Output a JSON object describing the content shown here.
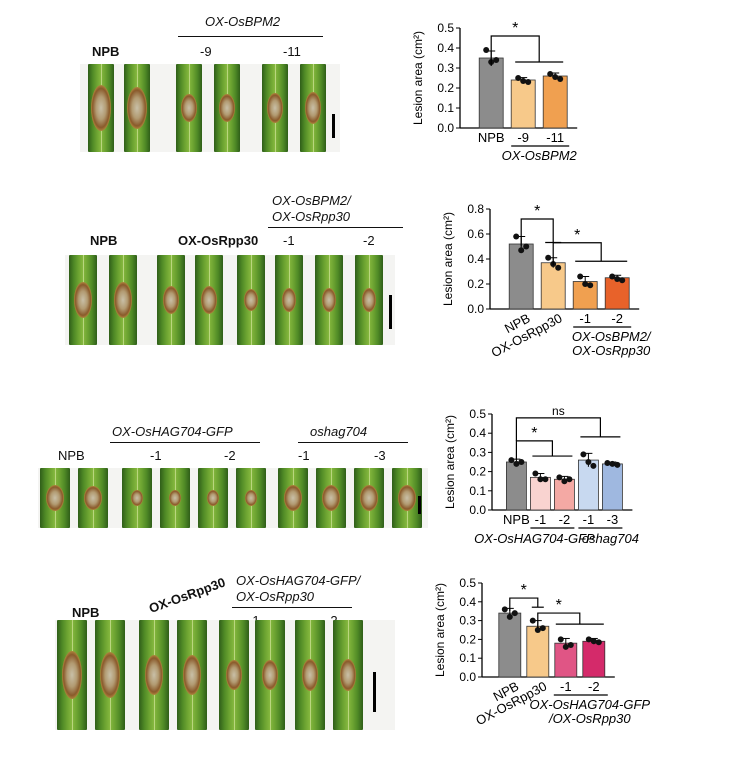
{
  "panels": [
    {
      "groups": {
        "npb": "NPB",
        "ox_bracket": "OX-OsBPM2",
        "lines": [
          "-9",
          "-11"
        ]
      },
      "chart_data": {
        "type": "bar",
        "categories": [
          "NPB",
          "-9",
          "-11"
        ],
        "group_label": "OX-OsBPM2",
        "values": [
          0.35,
          0.24,
          0.26
        ],
        "errors": [
          0.035,
          0.012,
          0.015
        ],
        "points": [
          [
            0.39,
            0.33,
            0.34
          ],
          [
            0.25,
            0.235,
            0.23
          ],
          [
            0.27,
            0.255,
            0.245
          ]
        ],
        "colors": [
          "#8c8c8c",
          "#f7c98a",
          "#f0a050"
        ],
        "ylabel": "Lesion area (cm²)",
        "ylim": [
          0,
          0.5
        ],
        "yticks": [
          "0.0",
          "0.1",
          "0.2",
          "0.3",
          "0.4",
          "0.5"
        ],
        "significance": [
          "*"
        ]
      }
    },
    {
      "groups": {
        "npb": "NPB",
        "single": "OX-OsRpp30",
        "ox_bracket_line1": "OX-OsBPM2/",
        "ox_bracket_line2": "OX-OsRpp30",
        "lines": [
          "-1",
          "-2"
        ]
      },
      "chart_data": {
        "type": "bar",
        "categories": [
          "NPB",
          "OX-OsRpp30",
          "-1",
          "-2"
        ],
        "group_label_line1": "OX-OsBPM2/",
        "group_label_line2": "OX-OsRpp30",
        "values": [
          0.52,
          0.37,
          0.22,
          0.25
        ],
        "errors": [
          0.06,
          0.04,
          0.04,
          0.02
        ],
        "points": [
          [
            0.58,
            0.47,
            0.5
          ],
          [
            0.41,
            0.36,
            0.33
          ],
          [
            0.26,
            0.2,
            0.19
          ],
          [
            0.26,
            0.24,
            0.23
          ]
        ],
        "colors": [
          "#8c8c8c",
          "#f7c98a",
          "#f0a050",
          "#e8622a"
        ],
        "ylabel": "Lesion area (cm²)",
        "ylim": [
          0,
          0.8
        ],
        "yticks": [
          "0.0",
          "0.2",
          "0.4",
          "0.6",
          "0.8"
        ],
        "significance": [
          "*",
          "*"
        ]
      }
    },
    {
      "groups": {
        "npb": "NPB",
        "ox_bracket": "OX-OsHAG704-GFP",
        "ox_lines": [
          "-1",
          "-2"
        ],
        "mut_bracket": "oshag704",
        "mut_lines": [
          "-1",
          "-3"
        ]
      },
      "chart_data": {
        "type": "bar",
        "categories": [
          "NPB",
          "-1",
          "-2",
          "-1",
          "-3"
        ],
        "group_labels": [
          "OX-OsHAG704-GFP",
          "oshag704"
        ],
        "values": [
          0.25,
          0.17,
          0.16,
          0.26,
          0.24
        ],
        "errors": [
          0.015,
          0.02,
          0.015,
          0.035,
          0.01
        ],
        "points": [
          [
            0.26,
            0.24,
            0.25
          ],
          [
            0.19,
            0.16,
            0.16
          ],
          [
            0.17,
            0.15,
            0.16
          ],
          [
            0.29,
            0.25,
            0.23
          ],
          [
            0.245,
            0.24,
            0.235
          ]
        ],
        "colors": [
          "#8c8c8c",
          "#f9d3d0",
          "#f4a9a4",
          "#c8d9f0",
          "#9fb8e0"
        ],
        "ylabel": "Lesion area (cm²)",
        "ylim": [
          0,
          0.5
        ],
        "yticks": [
          "0.0",
          "0.1",
          "0.2",
          "0.3",
          "0.4",
          "0.5"
        ],
        "significance": [
          "*",
          "ns"
        ]
      }
    },
    {
      "groups": {
        "npb": "NPB",
        "single": "OX-OsRpp30",
        "ox_bracket_line1": "OX-OsHAG704-GFP/",
        "ox_bracket_line2": "OX-OsRpp30",
        "lines": [
          "-1",
          "-2"
        ]
      },
      "chart_data": {
        "type": "bar",
        "categories": [
          "NPB",
          "OX-OsRpp30",
          "-1",
          "-2"
        ],
        "group_label_line1": "OX-OsHAG704-GFP",
        "group_label_line2": "/OX-OsRpp30",
        "values": [
          0.34,
          0.27,
          0.18,
          0.19
        ],
        "errors": [
          0.025,
          0.03,
          0.025,
          0.015
        ],
        "points": [
          [
            0.36,
            0.32,
            0.34
          ],
          [
            0.3,
            0.25,
            0.26
          ],
          [
            0.2,
            0.16,
            0.17
          ],
          [
            0.2,
            0.19,
            0.185
          ]
        ],
        "colors": [
          "#8c8c8c",
          "#f7c98a",
          "#e05585",
          "#d42a6a"
        ],
        "ylabel": "Lesion area (cm²)",
        "ylim": [
          0,
          0.5
        ],
        "yticks": [
          "0.0",
          "0.1",
          "0.2",
          "0.3",
          "0.4",
          "0.5"
        ],
        "significance": [
          "*",
          "*"
        ]
      }
    }
  ]
}
